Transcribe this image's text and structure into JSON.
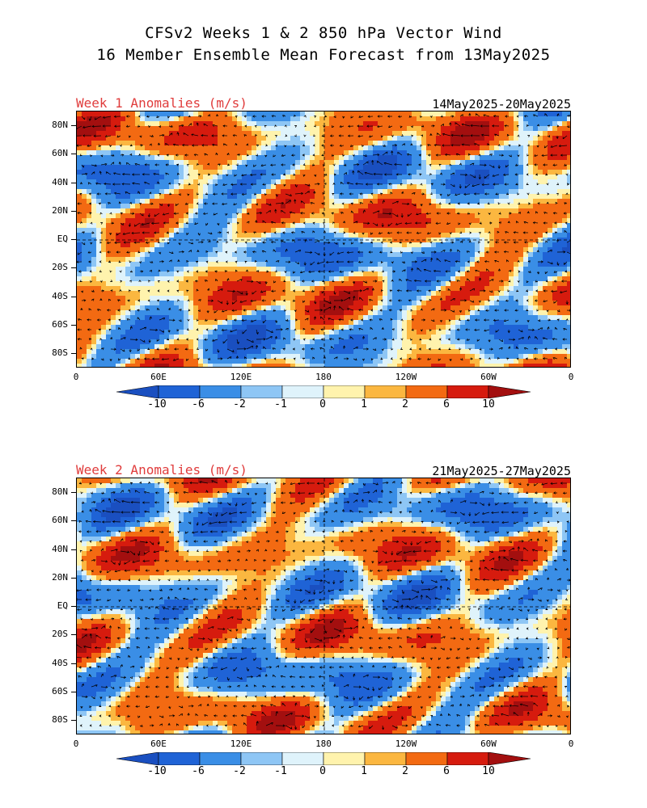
{
  "title_line1": "CFSv2 Weeks 1 & 2 850 hPa Vector Wind",
  "title_line2": "16 Member Ensemble Mean Forecast from 13May2025",
  "panels": [
    {
      "label": "Week 1 Anomalies (m/s)",
      "dates": "14May2025-20May2025"
    },
    {
      "label": "Week 2 Anomalies (m/s)",
      "dates": "21May2025-27May2025"
    }
  ],
  "lat_labels": [
    "80N",
    "60N",
    "40N",
    "20N",
    "EQ",
    "20S",
    "40S",
    "60S",
    "80S"
  ],
  "lon_labels": [
    "0",
    "60E",
    "120E",
    "180",
    "120W",
    "60W",
    "0"
  ],
  "colorbar": {
    "levels": [
      "-10",
      "-6",
      "-2",
      "-1",
      "0",
      "1",
      "2",
      "6",
      "10"
    ],
    "colors": [
      "#1f63d6",
      "#3a8ee6",
      "#8ec6f5",
      "#dff3fb",
      "#fff3ad",
      "#fbb740",
      "#f36a12",
      "#d61b0e"
    ],
    "under_color": "#1a4fc0",
    "over_color": "#a30f0f"
  }
}
